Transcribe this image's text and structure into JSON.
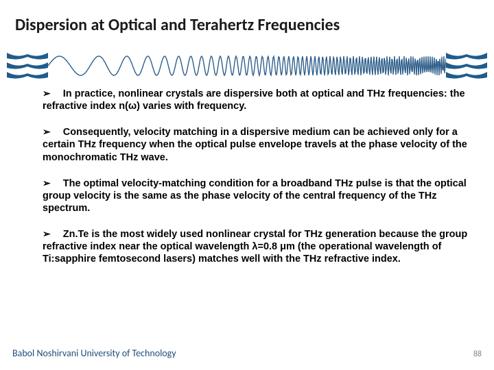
{
  "title": "Dispersion at Optical and Terahertz Frequencies",
  "bullets": [
    "In practice, nonlinear crystals are dispersive both at optical and THz frequencies: the refractive index n(ω) varies with frequency.",
    "Consequently, velocity matching in a dispersive medium can be achieved only for a certain THz frequency when the optical pulse envelope travels at the phase velocity of the monochromatic THz wave.",
    "The optimal velocity-matching condition for a broadband THz pulse is that the optical group velocity is the same as the phase velocity of the central frequency of the THz spectrum.",
    "Zn.Te is the most widely used nonlinear crystal for THz  generation because the group refractive index near the optical wavelength λ=0.8 μm (the operational wavelength of Ti:sapphire femtosecond lasers) matches well with the THz refractive index."
  ],
  "footer": {
    "university": "Babol Noshirvani University of Technology",
    "page": "88"
  },
  "style": {
    "title_color": "#1a1a1a",
    "title_fontsize": 24,
    "body_fontsize": 14.5,
    "body_weight": 700,
    "arrow_glyph": "➢",
    "wave_color": "#2e5e8a",
    "wave_stroke": 1.4,
    "logo_color": "#1f5c8c",
    "footer_color": "#1f4e79",
    "page_color": "#888888",
    "background": "#ffffff"
  }
}
